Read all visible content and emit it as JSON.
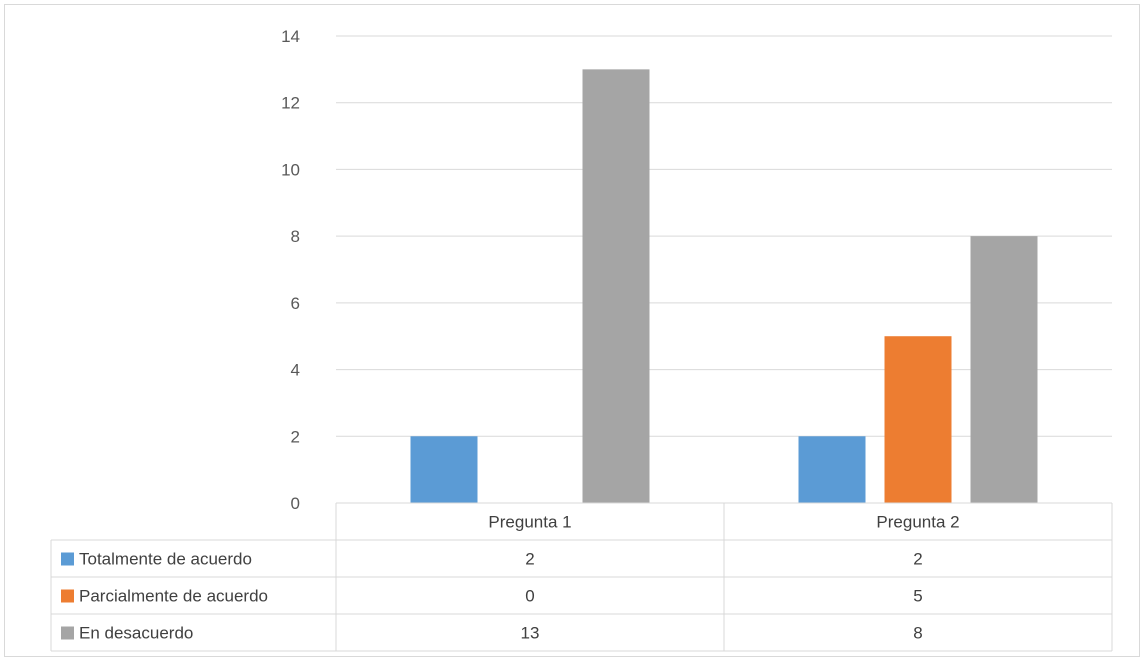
{
  "chart_data": {
    "type": "bar",
    "categories": [
      "Pregunta 1",
      "Pregunta 2"
    ],
    "series": [
      {
        "name": "Totalmente de acuerdo",
        "values": [
          2,
          2
        ],
        "color": "#5b9bd5"
      },
      {
        "name": "Parcialmente de acuerdo",
        "values": [
          0,
          5
        ],
        "color": "#ed7d31"
      },
      {
        "name": "En desacuerdo",
        "values": [
          13,
          8
        ],
        "color": "#a5a5a5"
      }
    ],
    "ylim": [
      0,
      14
    ],
    "yticks": [
      0,
      2,
      4,
      6,
      8,
      10,
      12,
      14
    ],
    "grid": true,
    "legend": "data-table"
  }
}
